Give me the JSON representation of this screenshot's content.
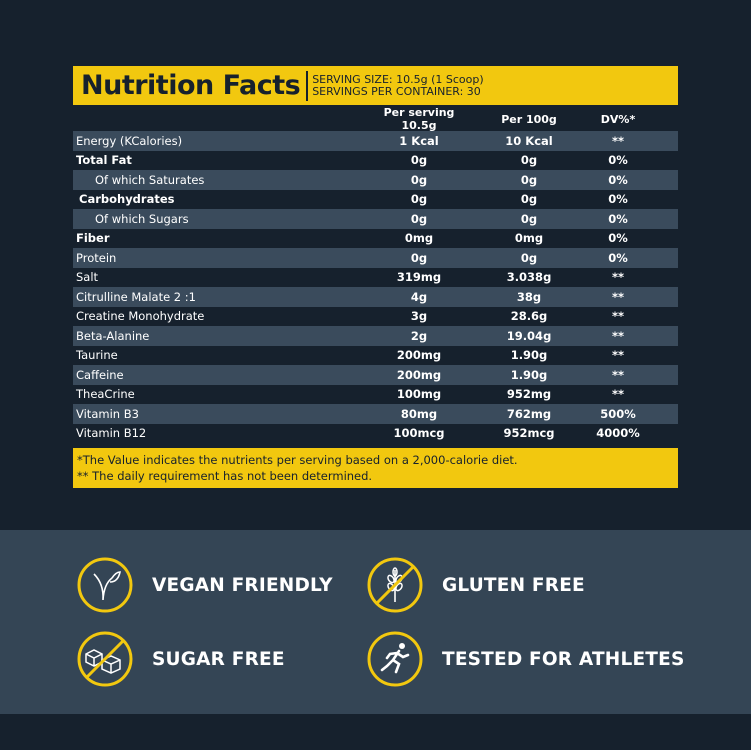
{
  "header": {
    "title": "Nutrition Facts",
    "serving_size": "SERVING SIZE: 10.5g (1 Scoop)",
    "servings_per_container": "SERVINGS PER CONTAINER: 30"
  },
  "columns": [
    "",
    "Per serving 10.5g",
    "Per 100g",
    "DV%*"
  ],
  "rows": [
    {
      "name": "Energy (KCalories)",
      "serving": "1 Kcal",
      "per100": "10 Kcal",
      "dv": "**"
    },
    {
      "name": "Total Fat",
      "serving": "0g",
      "per100": "0g",
      "dv": "0%"
    },
    {
      "name": "Of which Saturates",
      "serving": "0g",
      "per100": "0g",
      "dv": "0%"
    },
    {
      "name": "Carbohydrates",
      "serving": "0g",
      "per100": "0g",
      "dv": "0%"
    },
    {
      "name": "Of which Sugars",
      "serving": "0g",
      "per100": "0g",
      "dv": "0%"
    },
    {
      "name": "Fiber",
      "serving": "0mg",
      "per100": "0mg",
      "dv": "0%"
    },
    {
      "name": "Protein",
      "serving": "0g",
      "per100": "0g",
      "dv": "0%"
    },
    {
      "name": "Salt",
      "serving": "319mg",
      "per100": "3.038g",
      "dv": "**"
    },
    {
      "name": "Citrulline Malate 2 :1",
      "serving": "4g",
      "per100": "38g",
      "dv": "**"
    },
    {
      "name": "Creatine Monohydrate",
      "serving": "3g",
      "per100": "28.6g",
      "dv": "**"
    },
    {
      "name": "Beta-Alanine",
      "serving": "2g",
      "per100": "19.04g",
      "dv": "**"
    },
    {
      "name": "Taurine",
      "serving": "200mg",
      "per100": "1.90g",
      "dv": "**"
    },
    {
      "name": "Caffeine",
      "serving": "200mg",
      "per100": "1.90g",
      "dv": "**"
    },
    {
      "name": "TheaCrine",
      "serving": "100mg",
      "per100": "952mg",
      "dv": "**"
    },
    {
      "name": "Vitamin B3",
      "serving": "80mg",
      "per100": "762mg",
      "dv": "500%"
    },
    {
      "name": "Vitamin B12",
      "serving": "100mcg",
      "per100": "952mcg",
      "dv": "4000%"
    }
  ],
  "footnotes": [
    "*The Value indicates the nutrients per serving based on a 2,000-calorie diet.",
    "** The daily requirement has not been determined."
  ],
  "badges": [
    {
      "label": "VEGAN FRIENDLY",
      "icon": "leaf-icon"
    },
    {
      "label": "GLUTEN FREE",
      "icon": "wheat-crossed-icon"
    },
    {
      "label": "SUGAR FREE",
      "icon": "sugar-cubes-crossed-icon"
    },
    {
      "label": "TESTED FOR ATHLETES",
      "icon": "runner-icon"
    }
  ],
  "colors": {
    "accent": "#f2c80f",
    "background": "#16212d",
    "band": "#344555",
    "row_alt": "#3a4b5c"
  }
}
